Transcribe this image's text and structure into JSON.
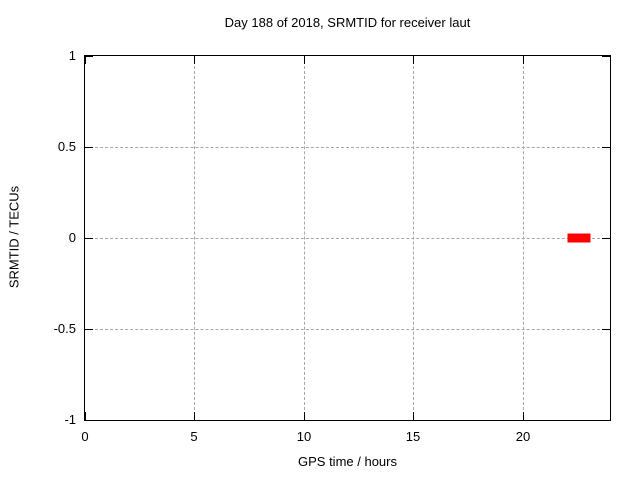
{
  "chart_data": {
    "type": "scatter",
    "title": "Day 188 of 2018, SRMTID for receiver laut",
    "xlabel": "GPS time / hours",
    "ylabel": "SRMTID / TECUs",
    "xlim": [
      0,
      24
    ],
    "ylim": [
      -1,
      1
    ],
    "xticks": [
      0,
      5,
      10,
      15,
      20
    ],
    "yticks": [
      -1,
      -0.5,
      0,
      0.5,
      1
    ],
    "grid": true,
    "grid_style": "dashed",
    "grid_color": "#a6a6a6",
    "frame_color": "#000000",
    "background": "#ffffff",
    "legend": "none",
    "series": [
      {
        "name": "SRMTID",
        "color": "#ff0000",
        "marker": "filled-square",
        "points": [
          {
            "x": 22.2,
            "y": 0
          },
          {
            "x": 22.35,
            "y": 0
          },
          {
            "x": 22.5,
            "y": 0
          },
          {
            "x": 22.65,
            "y": 0
          },
          {
            "x": 22.8,
            "y": 0
          },
          {
            "x": 22.95,
            "y": 0
          }
        ]
      }
    ]
  }
}
